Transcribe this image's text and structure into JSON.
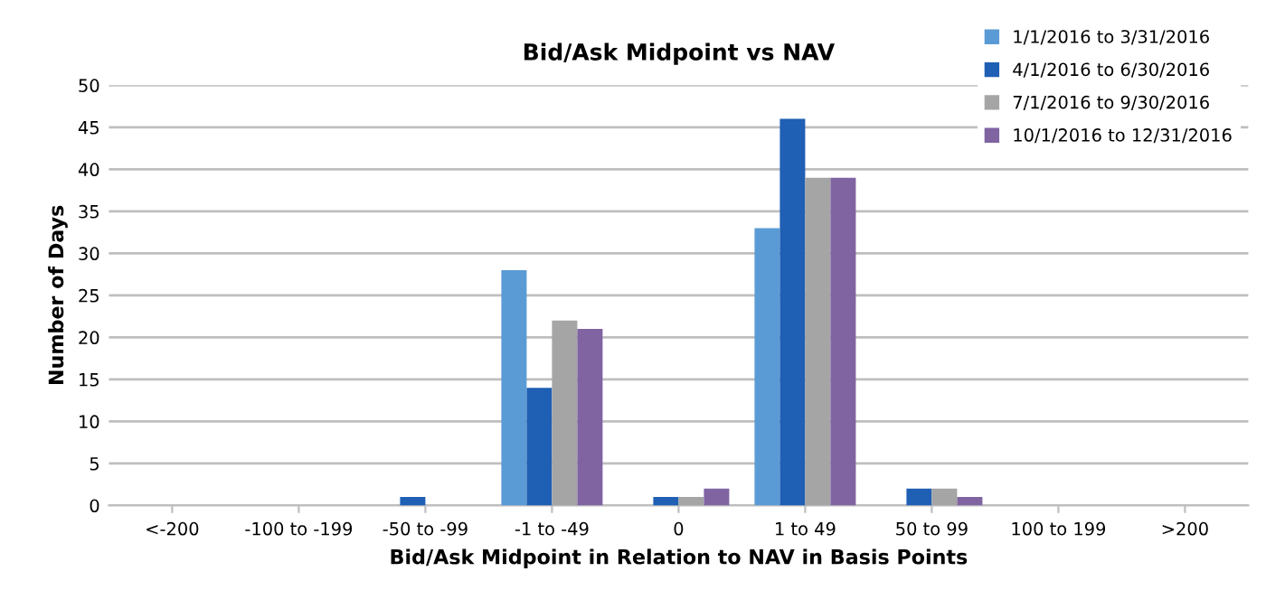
{
  "chart_data": {
    "type": "bar",
    "title": "Bid/Ask Midpoint vs NAV",
    "xlabel": "Bid/Ask Midpoint in Relation to NAV in Basis Points",
    "ylabel": "Number of Days",
    "categories": [
      "<-200",
      "-100 to -199",
      "-50 to -99",
      "-1 to -49",
      "0",
      "1 to 49",
      "50 to 99",
      "100 to 199",
      ">200"
    ],
    "series": [
      {
        "name": "1/1/2016 to 3/31/2016",
        "color": "#5b9bd5",
        "values": [
          0,
          0,
          0,
          28,
          0,
          33,
          0,
          0,
          0
        ]
      },
      {
        "name": "4/1/2016 to 6/30/2016",
        "color": "#1f5fb4",
        "values": [
          0,
          0,
          1,
          14,
          1,
          46,
          2,
          0,
          0
        ]
      },
      {
        "name": "7/1/2016 to 9/30/2016",
        "color": "#a5a5a5",
        "values": [
          0,
          0,
          0,
          22,
          1,
          39,
          2,
          0,
          0
        ]
      },
      {
        "name": "10/1/2016 to 12/31/2016",
        "color": "#8064a2",
        "values": [
          0,
          0,
          0,
          21,
          2,
          39,
          1,
          0,
          0
        ]
      }
    ],
    "ylim": [
      0,
      50
    ],
    "yticks": [
      0,
      5,
      10,
      15,
      20,
      25,
      30,
      35,
      40,
      45,
      50
    ],
    "grid": "y",
    "legend": "top right"
  }
}
